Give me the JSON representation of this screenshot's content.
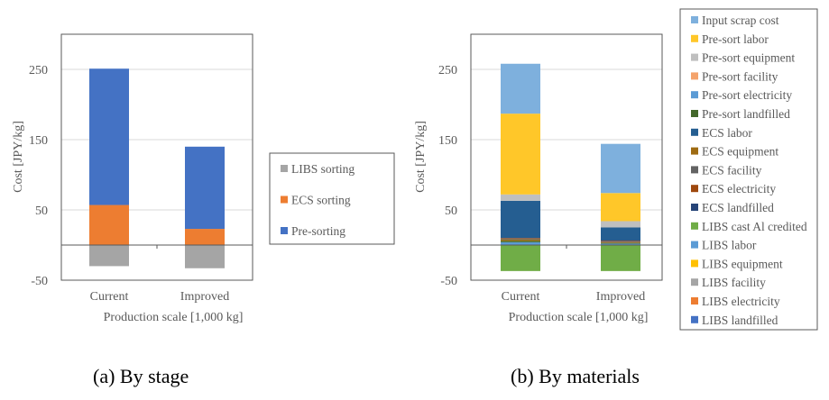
{
  "chart_data": [
    {
      "type": "bar",
      "stacked": true,
      "title": "",
      "caption": "(a) By stage",
      "categories": [
        "Current",
        "Improved"
      ],
      "xlabel": "Production scale [1,000 kg]",
      "ylabel": "Cost [JPY/kg]",
      "ylim": [
        -50,
        300
      ],
      "yticks": [
        -50,
        50,
        150,
        250
      ],
      "grid": true,
      "series": [
        {
          "name": "LIBS sorting",
          "color": "#a5a5a5",
          "values": [
            -30,
            -33
          ]
        },
        {
          "name": "ECS sorting",
          "color": "#ed7d31",
          "values": [
            57,
            23
          ]
        },
        {
          "name": "Pre-sorting",
          "color": "#4472c4",
          "values": [
            194,
            117
          ]
        }
      ],
      "legend": [
        "LIBS sorting",
        "ECS sorting",
        "Pre-sorting"
      ]
    },
    {
      "type": "bar",
      "stacked": true,
      "title": "",
      "caption": "(b) By materials",
      "categories": [
        "Current",
        "Improved"
      ],
      "xlabel": "Production scale [1,000 kg]",
      "ylabel": "Cost [JPY/kg]",
      "ylim": [
        -50,
        300
      ],
      "yticks": [
        -50,
        50,
        150,
        250
      ],
      "grid": true,
      "series": [
        {
          "name": "LIBS cast Al credited",
          "color": "#70ad47",
          "values": [
            -37,
            -37
          ]
        },
        {
          "name": "Pre-sort electricity",
          "color": "#5b9bd5",
          "values": [
            4,
            2
          ]
        },
        {
          "name": "Pre-sort landfilled",
          "color": "#43682b",
          "values": [
            2,
            1
          ]
        },
        {
          "name": "ECS equipment",
          "color": "#9e6b12",
          "values": [
            2,
            1
          ]
        },
        {
          "name": "ECS facility",
          "color": "#636363",
          "values": [
            1,
            1
          ]
        },
        {
          "name": "ECS electricity",
          "color": "#9e480e",
          "values": [
            1,
            1
          ]
        },
        {
          "name": "ECS landfilled",
          "color": "#264478",
          "values": [
            0,
            1
          ]
        },
        {
          "name": "ECS labor",
          "color": "#255e91",
          "values": [
            53,
            18
          ]
        },
        {
          "name": "Pre-sort equipment",
          "color": "#bfbfbf",
          "values": [
            9,
            9
          ]
        },
        {
          "name": "Pre-sort labor",
          "color": "#ffc729",
          "values": [
            115,
            40
          ]
        },
        {
          "name": "Input scrap cost",
          "color": "#7eb0dd",
          "values": [
            71,
            70
          ]
        }
      ],
      "legend": [
        {
          "name": "Input scrap cost",
          "color": "#7eb0dd"
        },
        {
          "name": "Pre-sort labor",
          "color": "#ffc729"
        },
        {
          "name": "Pre-sort equipment",
          "color": "#bfbfbf"
        },
        {
          "name": "Pre-sort facility",
          "color": "#f4a36c"
        },
        {
          "name": "Pre-sort electricity",
          "color": "#5b9bd5"
        },
        {
          "name": "Pre-sort landfilled",
          "color": "#43682b"
        },
        {
          "name": "ECS labor",
          "color": "#255e91"
        },
        {
          "name": "ECS equipment",
          "color": "#9e6b12"
        },
        {
          "name": "ECS facility",
          "color": "#636363"
        },
        {
          "name": "ECS electricity",
          "color": "#9e480e"
        },
        {
          "name": "ECS landfilled",
          "color": "#264478"
        },
        {
          "name": "LIBS cast Al credited",
          "color": "#70ad47"
        },
        {
          "name": "LIBS labor",
          "color": "#5b9bd5"
        },
        {
          "name": "LIBS equipment",
          "color": "#ffc000"
        },
        {
          "name": "LIBS facility",
          "color": "#a5a5a5"
        },
        {
          "name": "LIBS electricity",
          "color": "#ed7d31"
        },
        {
          "name": "LIBS landfilled",
          "color": "#4472c4"
        }
      ]
    }
  ]
}
